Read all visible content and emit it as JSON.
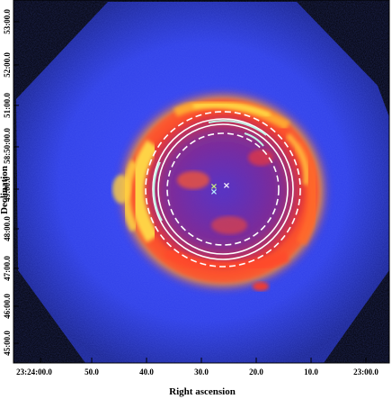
{
  "figure": {
    "x_axis_label": "Right ascension",
    "y_axis_label": "Declination",
    "x_tick_labels": [
      "23:24:00.0",
      "50.0",
      "40.0",
      "30.0",
      "20.0",
      "10.0",
      "23:00.0"
    ],
    "y_tick_labels": [
      "45:00.0",
      "46:00.0",
      "47:00.0",
      "48:00.0",
      "49:00.0",
      "58:50:00.0",
      "51:00.0",
      "52:00.0",
      "53:00.0"
    ],
    "colors": {
      "background": "#000000",
      "field": "#2d3df0",
      "emission_hot": "#ffe24a",
      "emission_mid": "#ff4a2a",
      "emission_low": "#c4136a",
      "annulus_lines": "#ffffff",
      "arc_highlight": "#bff3e6"
    },
    "markers": [
      {
        "name": "cross-marker-white",
        "symbol": "×",
        "color": "#ffffff"
      },
      {
        "name": "cross-marker-cyan",
        "symbol": "×",
        "color": "#b8f0ff"
      },
      {
        "name": "cross-marker-green",
        "symbol": "×",
        "color": "#c9f080"
      }
    ]
  }
}
